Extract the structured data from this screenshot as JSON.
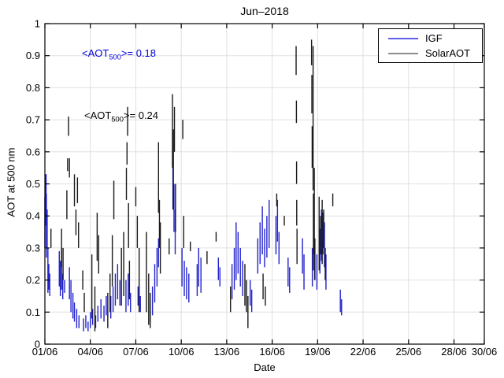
{
  "chart_data": {
    "type": "scatter",
    "title": "Jun–2018",
    "xlabel": "Date",
    "ylabel": "AOT at 500 nm",
    "xlim_days": [
      1,
      30
    ],
    "ylim": [
      0,
      1
    ],
    "grid": true,
    "legend_position": "top-right",
    "grid_color": "#e0e0e0",
    "axis_color": "#000000",
    "xticks": [
      {
        "day": 1,
        "label": "01/06"
      },
      {
        "day": 4,
        "label": "04/06"
      },
      {
        "day": 7,
        "label": "07/06"
      },
      {
        "day": 10,
        "label": "10/06"
      },
      {
        "day": 13,
        "label": "13/06"
      },
      {
        "day": 16,
        "label": "16/06"
      },
      {
        "day": 19,
        "label": "19/06"
      },
      {
        "day": 22,
        "label": "22/06"
      },
      {
        "day": 25,
        "label": "25/06"
      },
      {
        "day": 28,
        "label": "28/06"
      },
      {
        "day": 30,
        "label": "30/06"
      }
    ],
    "yticks": [
      {
        "v": 0,
        "label": "0"
      },
      {
        "v": 0.1,
        "label": "0.1"
      },
      {
        "v": 0.2,
        "label": "0.2"
      },
      {
        "v": 0.3,
        "label": "0.3"
      },
      {
        "v": 0.4,
        "label": "0.4"
      },
      {
        "v": 0.5,
        "label": "0.5"
      },
      {
        "v": 0.6,
        "label": "0.6"
      },
      {
        "v": 0.7,
        "label": "0.7"
      },
      {
        "v": 0.8,
        "label": "0.8"
      },
      {
        "v": 0.9,
        "label": "0.9"
      },
      {
        "v": 1,
        "label": "1"
      }
    ],
    "annotations": [
      {
        "series": "IGF",
        "pre": "<AOT",
        "sub": "500",
        "post": ">= 0.18",
        "mean": 0.18,
        "color": "#0000dd"
      },
      {
        "series": "SolarAOT",
        "pre": "<AOT",
        "sub": "500",
        "post": ">= 0.24",
        "mean": 0.24,
        "color": "#000000"
      }
    ],
    "series": [
      {
        "name": "IGF",
        "color": "#2222cc",
        "legend_color": "#5f5fe8",
        "segments": [
          [
            1.0,
            0.3,
            0.46
          ],
          [
            1.05,
            0.37,
            0.53
          ],
          [
            1.08,
            0.43,
            0.53
          ],
          [
            1.1,
            0.27,
            0.47
          ],
          [
            1.15,
            0.3,
            0.42
          ],
          [
            1.2,
            0.16,
            0.3
          ],
          [
            1.26,
            0.17,
            0.25
          ],
          [
            1.32,
            0.15,
            0.22
          ],
          [
            1.95,
            0.18,
            0.29
          ],
          [
            2.02,
            0.15,
            0.26
          ],
          [
            2.1,
            0.17,
            0.3
          ],
          [
            2.18,
            0.14,
            0.22
          ],
          [
            2.3,
            0.16,
            0.2
          ],
          [
            2.62,
            0.14,
            0.24
          ],
          [
            2.72,
            0.1,
            0.2
          ],
          [
            2.85,
            0.08,
            0.16
          ],
          [
            2.95,
            0.07,
            0.13
          ],
          [
            3.1,
            0.05,
            0.11
          ],
          [
            3.25,
            0.05,
            0.09
          ],
          [
            3.55,
            0.04,
            0.08
          ],
          [
            3.7,
            0.05,
            0.09
          ],
          [
            3.85,
            0.04,
            0.07
          ],
          [
            4.0,
            0.05,
            0.1
          ],
          [
            4.15,
            0.06,
            0.11
          ],
          [
            4.35,
            0.05,
            0.09
          ],
          [
            4.5,
            0.07,
            0.12
          ],
          [
            4.7,
            0.08,
            0.14
          ],
          [
            4.9,
            0.07,
            0.12
          ],
          [
            5.05,
            0.09,
            0.15
          ],
          [
            5.35,
            0.08,
            0.15
          ],
          [
            5.5,
            0.1,
            0.18
          ],
          [
            5.65,
            0.12,
            0.22
          ],
          [
            5.8,
            0.14,
            0.25
          ],
          [
            5.95,
            0.12,
            0.2
          ],
          [
            6.35,
            0.1,
            0.2
          ],
          [
            6.5,
            0.12,
            0.22
          ],
          [
            6.65,
            0.1,
            0.16
          ],
          [
            7.15,
            0.12,
            0.18
          ],
          [
            7.3,
            0.1,
            0.15
          ],
          [
            7.95,
            0.07,
            0.13
          ],
          [
            8.1,
            0.09,
            0.18
          ],
          [
            8.25,
            0.13,
            0.25
          ],
          [
            8.4,
            0.18,
            0.3
          ],
          [
            8.5,
            0.24,
            0.33
          ],
          [
            9.45,
            0.42,
            0.575
          ],
          [
            9.52,
            0.35,
            0.5
          ],
          [
            9.6,
            0.28,
            0.42
          ],
          [
            10.05,
            0.18,
            0.3
          ],
          [
            10.2,
            0.15,
            0.26
          ],
          [
            10.35,
            0.14,
            0.24
          ],
          [
            10.5,
            0.13,
            0.22
          ],
          [
            11.05,
            0.15,
            0.25
          ],
          [
            11.15,
            0.18,
            0.3
          ],
          [
            11.3,
            0.16,
            0.27
          ],
          [
            12.45,
            0.2,
            0.27
          ],
          [
            12.55,
            0.18,
            0.24
          ],
          [
            13.35,
            0.14,
            0.25
          ],
          [
            13.5,
            0.17,
            0.3
          ],
          [
            13.62,
            0.2,
            0.38
          ],
          [
            13.75,
            0.22,
            0.35
          ],
          [
            13.9,
            0.18,
            0.3
          ],
          [
            14.05,
            0.15,
            0.26
          ],
          [
            14.55,
            0.12,
            0.2
          ],
          [
            14.65,
            0.1,
            0.17
          ],
          [
            15.05,
            0.22,
            0.33
          ],
          [
            15.2,
            0.25,
            0.38
          ],
          [
            15.35,
            0.28,
            0.43
          ],
          [
            15.5,
            0.24,
            0.36
          ],
          [
            15.65,
            0.27,
            0.4
          ],
          [
            15.8,
            0.3,
            0.45
          ],
          [
            16.25,
            0.28,
            0.4
          ],
          [
            16.35,
            0.32,
            0.45
          ],
          [
            16.45,
            0.25,
            0.35
          ],
          [
            17.05,
            0.18,
            0.27
          ],
          [
            17.15,
            0.16,
            0.24
          ],
          [
            18.0,
            0.22,
            0.33
          ],
          [
            18.1,
            0.17,
            0.28
          ],
          [
            18.65,
            0.18,
            0.3
          ],
          [
            18.8,
            0.2,
            0.32
          ],
          [
            18.95,
            0.17,
            0.28
          ],
          [
            19.15,
            0.22,
            0.36
          ],
          [
            19.25,
            0.26,
            0.42
          ],
          [
            19.35,
            0.28,
            0.41
          ],
          [
            19.45,
            0.24,
            0.38
          ],
          [
            19.55,
            0.17,
            0.28
          ],
          [
            20.5,
            0.1,
            0.17
          ],
          [
            20.58,
            0.09,
            0.14
          ]
        ]
      },
      {
        "name": "SolarAOT",
        "color": "#1a1a1a",
        "legend_color": "#8c8c8c",
        "segments": [
          [
            1.4,
            0.3,
            0.36
          ],
          [
            2.1,
            0.24,
            0.36
          ],
          [
            2.2,
            0.2,
            0.3
          ],
          [
            2.45,
            0.39,
            0.48
          ],
          [
            2.5,
            0.54,
            0.58
          ],
          [
            2.56,
            0.65,
            0.71
          ],
          [
            2.62,
            0.52,
            0.58
          ],
          [
            2.95,
            0.43,
            0.53
          ],
          [
            3.05,
            0.34,
            0.42
          ],
          [
            3.15,
            0.44,
            0.52
          ],
          [
            3.22,
            0.3,
            0.38
          ],
          [
            3.5,
            0.17,
            0.23
          ],
          [
            3.6,
            0.1,
            0.16
          ],
          [
            4.1,
            0.08,
            0.28
          ],
          [
            4.3,
            0.04,
            0.18
          ],
          [
            4.45,
            0.26,
            0.41
          ],
          [
            4.55,
            0.22,
            0.34
          ],
          [
            5.15,
            0.05,
            0.16
          ],
          [
            5.3,
            0.1,
            0.22
          ],
          [
            5.45,
            0.18,
            0.34
          ],
          [
            5.55,
            0.39,
            0.51
          ],
          [
            6.05,
            0.12,
            0.3
          ],
          [
            6.2,
            0.15,
            0.35
          ],
          [
            6.38,
            0.45,
            0.55
          ],
          [
            6.42,
            0.56,
            0.63
          ],
          [
            6.46,
            0.65,
            0.74
          ],
          [
            6.52,
            0.3,
            0.44
          ],
          [
            6.58,
            0.14,
            0.26
          ],
          [
            7.0,
            0.43,
            0.49
          ],
          [
            7.1,
            0.3,
            0.4
          ],
          [
            7.22,
            0.1,
            0.3
          ],
          [
            7.7,
            0.1,
            0.35
          ],
          [
            7.85,
            0.06,
            0.22
          ],
          [
            7.95,
            0.05,
            0.16
          ],
          [
            8.5,
            0.41,
            0.63
          ],
          [
            8.56,
            0.3,
            0.45
          ],
          [
            8.62,
            0.22,
            0.38
          ],
          [
            9.2,
            0.28,
            0.33
          ],
          [
            9.42,
            0.55,
            0.78
          ],
          [
            9.48,
            0.42,
            0.67
          ],
          [
            9.55,
            0.6,
            0.74
          ],
          [
            9.62,
            0.35,
            0.5
          ],
          [
            10.1,
            0.64,
            0.7
          ],
          [
            10.16,
            0.3,
            0.4
          ],
          [
            10.6,
            0.29,
            0.32
          ],
          [
            11.7,
            0.25,
            0.29
          ],
          [
            12.3,
            0.32,
            0.35
          ],
          [
            13.25,
            0.1,
            0.18
          ],
          [
            14.2,
            0.12,
            0.25
          ],
          [
            14.3,
            0.1,
            0.2
          ],
          [
            14.4,
            0.05,
            0.15
          ],
          [
            15.4,
            0.14,
            0.22
          ],
          [
            15.55,
            0.12,
            0.18
          ],
          [
            16.3,
            0.43,
            0.47
          ],
          [
            16.8,
            0.37,
            0.4
          ],
          [
            17.58,
            0.84,
            0.93
          ],
          [
            17.6,
            0.69,
            0.76
          ],
          [
            17.61,
            0.5,
            0.57
          ],
          [
            17.62,
            0.37,
            0.45
          ],
          [
            17.64,
            0.25,
            0.36
          ],
          [
            18.6,
            0.87,
            0.95
          ],
          [
            18.62,
            0.72,
            0.84
          ],
          [
            18.64,
            0.55,
            0.68
          ],
          [
            18.7,
            0.48,
            0.93
          ],
          [
            18.72,
            0.23,
            0.47
          ],
          [
            18.78,
            0.28,
            0.55
          ],
          [
            18.82,
            0.2,
            0.33
          ],
          [
            19.1,
            0.23,
            0.46
          ],
          [
            19.2,
            0.28,
            0.4
          ],
          [
            19.3,
            0.25,
            0.45
          ],
          [
            19.4,
            0.3,
            0.42
          ],
          [
            19.5,
            0.2,
            0.3
          ],
          [
            20.0,
            0.43,
            0.47
          ]
        ]
      }
    ]
  }
}
